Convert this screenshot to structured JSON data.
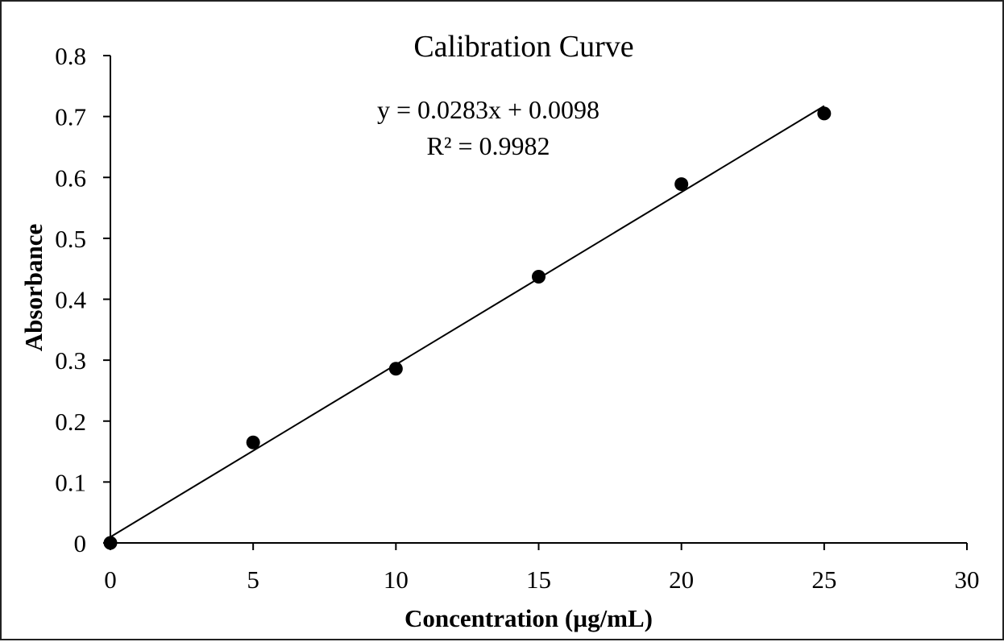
{
  "chart_data": {
    "type": "scatter",
    "title": "Calibration  Curve",
    "xlabel": "Concentration (µg/mL)",
    "ylabel": "Absorbance",
    "xlim": [
      0,
      30
    ],
    "ylim": [
      0,
      0.8
    ],
    "x_ticks": [
      "0",
      "5",
      "10",
      "15",
      "20",
      "25",
      "30"
    ],
    "y_ticks": [
      "0",
      "0.1",
      "0.2",
      "0.3",
      "0.4",
      "0.5",
      "0.6",
      "0.7",
      "0.8"
    ],
    "grid": false,
    "legend": "none",
    "series": [
      {
        "x": [
          0,
          5,
          10,
          15,
          20,
          25
        ],
        "y": [
          0.0,
          0.165,
          0.286,
          0.437,
          0.589,
          0.705
        ],
        "marker": "circle",
        "color": "#000000"
      }
    ],
    "trendline": {
      "type": "linear",
      "slope": 0.0283,
      "intercept": 0.0098,
      "x_range": [
        0,
        25
      ],
      "equation": "y = 0.0283x + 0.0098",
      "r_squared": "R² = 0.9982"
    }
  }
}
